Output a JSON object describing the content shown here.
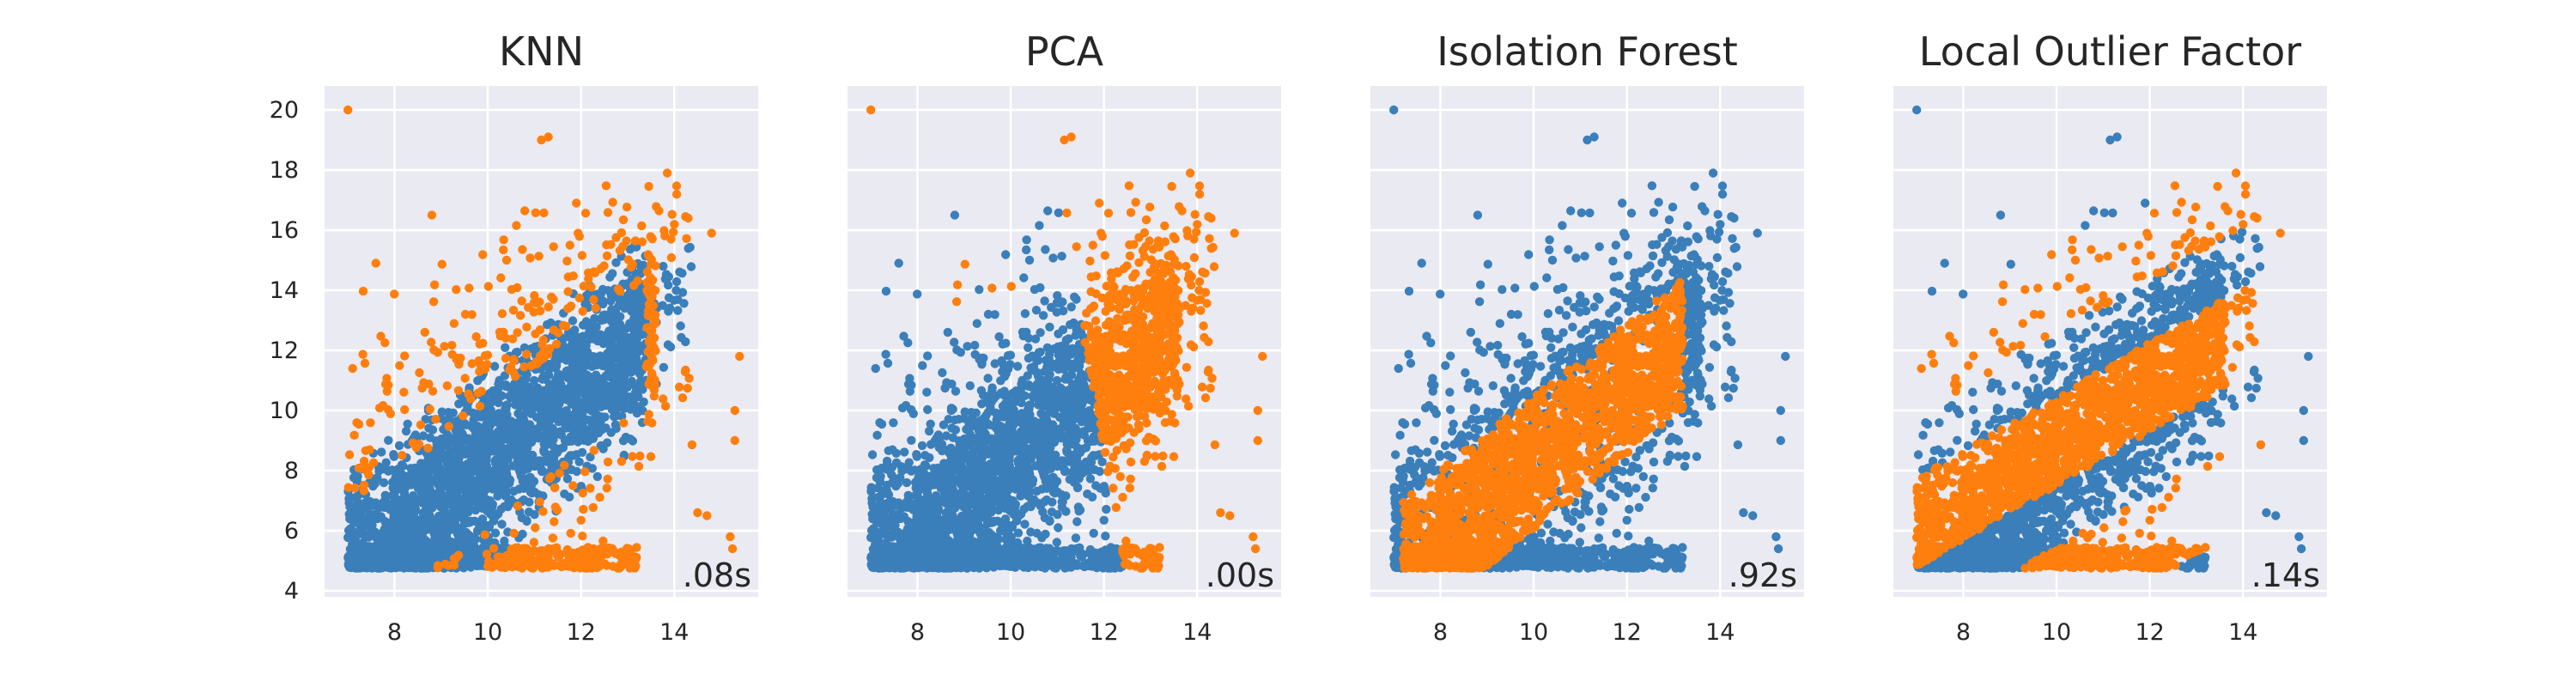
{
  "palette": {
    "background": "#eaeaf2",
    "grid": "#ffffff",
    "inlier": "#3a7fba",
    "outlier": "#ff7f0e",
    "text": "#262626"
  },
  "chart_data": [
    {
      "type": "scatter",
      "title": "KNN",
      "annotation": ".08s",
      "xlim": [
        6.5,
        15.8
      ],
      "ylim": [
        3.8,
        20.8
      ],
      "x_ticks": [
        8,
        10,
        12,
        14
      ],
      "y_ticks": [
        4,
        6,
        8,
        10,
        12,
        14,
        16,
        18,
        20
      ],
      "show_y_tick_labels": true,
      "grid": true,
      "outlier_region": "points outside the central diagonal band",
      "series": [
        {
          "color": "inlier",
          "values": "dense diagonal cloud from (7,4.8) up to (14,15.5)"
        },
        {
          "color": "outlier",
          "values": "scattered points surrounding the cloud"
        }
      ]
    },
    {
      "type": "scatter",
      "title": "PCA",
      "annotation": ".00s",
      "xlim": [
        6.5,
        15.8
      ],
      "ylim": [
        3.8,
        20.8
      ],
      "x_ticks": [
        8,
        10,
        12,
        14
      ],
      "y_ticks": [
        4,
        6,
        8,
        10,
        12,
        14,
        16,
        18,
        20
      ],
      "show_y_tick_labels": false,
      "grid": true,
      "outlier_region": "right side of the cloud (x beyond about 11.8)",
      "series": [
        {
          "color": "inlier",
          "values": "left part of the cloud"
        },
        {
          "color": "outlier",
          "values": "right part of the cloud"
        }
      ]
    },
    {
      "type": "scatter",
      "title": "Isolation Forest",
      "annotation": ".92s",
      "xlim": [
        6.5,
        15.8
      ],
      "ylim": [
        3.8,
        20.8
      ],
      "x_ticks": [
        8,
        10,
        12,
        14
      ],
      "y_ticks": [
        4,
        6,
        8,
        10,
        12,
        14,
        16,
        18,
        20
      ],
      "show_y_tick_labels": false,
      "grid": true,
      "outlier_region": "dense diagonal core",
      "series": [
        {
          "color": "inlier",
          "values": "outer scattered points"
        },
        {
          "color": "outlier",
          "values": "dense diagonal core"
        }
      ]
    },
    {
      "type": "scatter",
      "title": "Local Outlier Factor",
      "annotation": ".14s",
      "xlim": [
        6.5,
        15.8
      ],
      "ylim": [
        3.8,
        20.8
      ],
      "x_ticks": [
        8,
        10,
        12,
        14
      ],
      "y_ticks": [
        4,
        6,
        8,
        10,
        12,
        14,
        16,
        18,
        20
      ],
      "show_y_tick_labels": false,
      "grid": true,
      "outlier_region": "interleaved bands throughout the cloud",
      "series": [
        {
          "color": "inlier",
          "values": "blue points interleaved within the cloud"
        },
        {
          "color": "outlier",
          "values": "orange bands across the cloud"
        }
      ]
    }
  ]
}
